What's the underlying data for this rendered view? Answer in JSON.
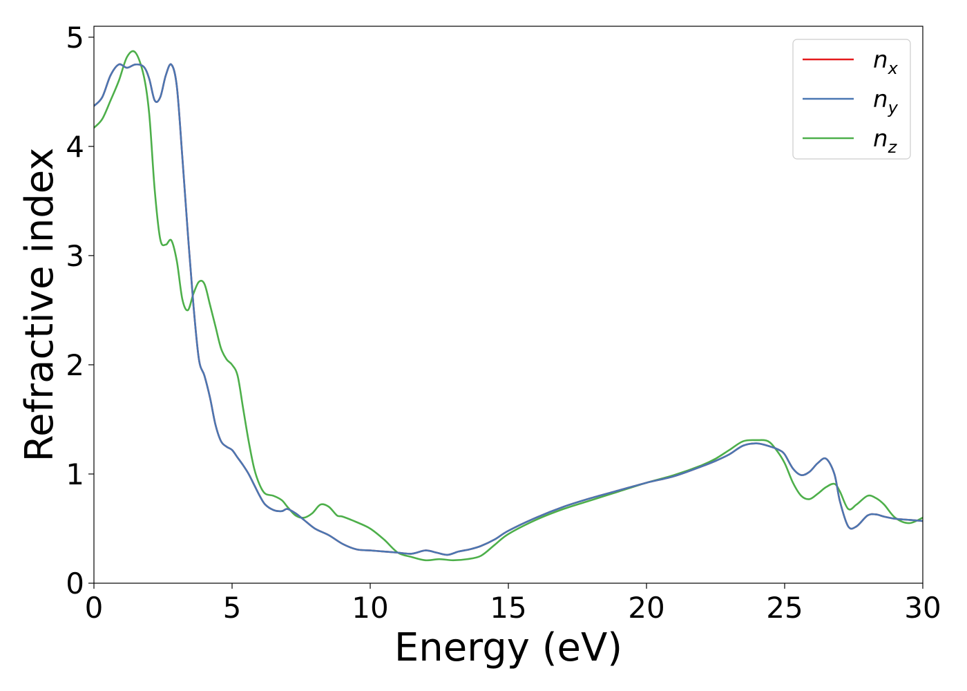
{
  "chart_data": {
    "type": "line",
    "xlabel": "Energy (eV)",
    "ylabel": "Refractive index",
    "xlim": [
      0,
      30
    ],
    "ylim": [
      0,
      5.1
    ],
    "xticks": [
      0,
      5,
      10,
      15,
      20,
      25,
      30
    ],
    "yticks": [
      0,
      1,
      2,
      3,
      4,
      5
    ],
    "grid": false,
    "legend_position": "top-right",
    "series": [
      {
        "name": "n",
        "subscript": "x",
        "color": "#e41a1c",
        "x": [
          0,
          0.3,
          0.6,
          0.9,
          1.2,
          1.5,
          1.8,
          2.0,
          2.2,
          2.4,
          2.6,
          2.8,
          3.0,
          3.2,
          3.4,
          3.6,
          3.8,
          4.0,
          4.2,
          4.4,
          4.6,
          4.8,
          5.0,
          5.2,
          5.4,
          5.6,
          5.8,
          6.0,
          6.2,
          6.5,
          6.8,
          7.0,
          7.3,
          7.6,
          8.0,
          8.5,
          9.0,
          9.5,
          10.0,
          10.5,
          11.0,
          11.5,
          12.0,
          12.4,
          12.8,
          13.2,
          13.6,
          14.0,
          14.5,
          15.0,
          16.0,
          17.0,
          18.0,
          19.0,
          20.0,
          21.0,
          22.0,
          22.5,
          23.0,
          23.5,
          24.0,
          24.5,
          24.8,
          25.0,
          25.3,
          25.6,
          25.9,
          26.2,
          26.5,
          26.8,
          27.0,
          27.3,
          27.6,
          28.0,
          28.3,
          28.6,
          29.0,
          29.5,
          30.0
        ],
        "y": [
          4.37,
          4.45,
          4.65,
          4.75,
          4.72,
          4.75,
          4.73,
          4.62,
          4.42,
          4.45,
          4.65,
          4.75,
          4.55,
          3.9,
          3.2,
          2.55,
          2.05,
          1.9,
          1.7,
          1.45,
          1.3,
          1.25,
          1.22,
          1.15,
          1.08,
          1.0,
          0.9,
          0.8,
          0.72,
          0.67,
          0.66,
          0.68,
          0.64,
          0.58,
          0.5,
          0.44,
          0.36,
          0.31,
          0.3,
          0.29,
          0.28,
          0.27,
          0.3,
          0.28,
          0.26,
          0.29,
          0.31,
          0.34,
          0.4,
          0.48,
          0.6,
          0.7,
          0.78,
          0.85,
          0.92,
          0.98,
          1.07,
          1.12,
          1.18,
          1.26,
          1.28,
          1.25,
          1.22,
          1.18,
          1.05,
          0.99,
          1.02,
          1.1,
          1.14,
          1.0,
          0.75,
          0.52,
          0.52,
          0.62,
          0.63,
          0.61,
          0.59,
          0.58,
          0.57
        ]
      },
      {
        "name": "n",
        "subscript": "y",
        "color": "#4a77b2",
        "x": [
          0,
          0.3,
          0.6,
          0.9,
          1.2,
          1.5,
          1.8,
          2.0,
          2.2,
          2.4,
          2.6,
          2.8,
          3.0,
          3.2,
          3.4,
          3.6,
          3.8,
          4.0,
          4.2,
          4.4,
          4.6,
          4.8,
          5.0,
          5.2,
          5.4,
          5.6,
          5.8,
          6.0,
          6.2,
          6.5,
          6.8,
          7.0,
          7.3,
          7.6,
          8.0,
          8.5,
          9.0,
          9.5,
          10.0,
          10.5,
          11.0,
          11.5,
          12.0,
          12.4,
          12.8,
          13.2,
          13.6,
          14.0,
          14.5,
          15.0,
          16.0,
          17.0,
          18.0,
          19.0,
          20.0,
          21.0,
          22.0,
          22.5,
          23.0,
          23.5,
          24.0,
          24.5,
          24.8,
          25.0,
          25.3,
          25.6,
          25.9,
          26.2,
          26.5,
          26.8,
          27.0,
          27.3,
          27.6,
          28.0,
          28.3,
          28.6,
          29.0,
          29.5,
          30.0
        ],
        "y": [
          4.37,
          4.45,
          4.65,
          4.75,
          4.72,
          4.75,
          4.73,
          4.62,
          4.42,
          4.45,
          4.65,
          4.75,
          4.55,
          3.9,
          3.2,
          2.55,
          2.05,
          1.9,
          1.7,
          1.45,
          1.3,
          1.25,
          1.22,
          1.15,
          1.08,
          1.0,
          0.9,
          0.8,
          0.72,
          0.67,
          0.66,
          0.68,
          0.64,
          0.58,
          0.5,
          0.44,
          0.36,
          0.31,
          0.3,
          0.29,
          0.28,
          0.27,
          0.3,
          0.28,
          0.26,
          0.29,
          0.31,
          0.34,
          0.4,
          0.48,
          0.6,
          0.7,
          0.78,
          0.85,
          0.92,
          0.98,
          1.07,
          1.12,
          1.18,
          1.26,
          1.28,
          1.25,
          1.22,
          1.18,
          1.05,
          0.99,
          1.02,
          1.1,
          1.14,
          1.0,
          0.75,
          0.52,
          0.52,
          0.62,
          0.63,
          0.61,
          0.59,
          0.58,
          0.57
        ]
      },
      {
        "name": "n",
        "subscript": "z",
        "color": "#4daf4a",
        "x": [
          0,
          0.3,
          0.6,
          0.9,
          1.2,
          1.5,
          1.8,
          2.0,
          2.2,
          2.4,
          2.6,
          2.8,
          3.0,
          3.2,
          3.4,
          3.6,
          3.8,
          4.0,
          4.2,
          4.4,
          4.6,
          4.8,
          5.0,
          5.2,
          5.4,
          5.6,
          5.8,
          6.0,
          6.2,
          6.5,
          6.8,
          7.0,
          7.3,
          7.6,
          7.9,
          8.2,
          8.5,
          8.8,
          9.0,
          9.5,
          10.0,
          10.5,
          11.0,
          11.5,
          12.0,
          12.5,
          13.0,
          13.5,
          14.0,
          14.5,
          15.0,
          16.0,
          17.0,
          18.0,
          19.0,
          20.0,
          21.0,
          22.0,
          22.5,
          23.0,
          23.5,
          24.0,
          24.4,
          24.7,
          25.0,
          25.3,
          25.6,
          25.9,
          26.2,
          26.5,
          26.8,
          27.0,
          27.3,
          27.6,
          28.0,
          28.3,
          28.6,
          29.0,
          29.5,
          30.0
        ],
        "y": [
          4.17,
          4.25,
          4.42,
          4.6,
          4.82,
          4.86,
          4.65,
          4.3,
          3.6,
          3.15,
          3.1,
          3.14,
          2.95,
          2.6,
          2.5,
          2.65,
          2.76,
          2.74,
          2.55,
          2.35,
          2.15,
          2.05,
          2.0,
          1.9,
          1.6,
          1.3,
          1.05,
          0.9,
          0.82,
          0.8,
          0.76,
          0.7,
          0.62,
          0.6,
          0.64,
          0.72,
          0.7,
          0.62,
          0.61,
          0.56,
          0.5,
          0.4,
          0.28,
          0.24,
          0.21,
          0.22,
          0.21,
          0.22,
          0.25,
          0.35,
          0.45,
          0.58,
          0.68,
          0.76,
          0.84,
          0.92,
          0.99,
          1.08,
          1.14,
          1.22,
          1.3,
          1.31,
          1.3,
          1.22,
          1.1,
          0.92,
          0.8,
          0.77,
          0.82,
          0.88,
          0.91,
          0.84,
          0.68,
          0.72,
          0.8,
          0.78,
          0.72,
          0.6,
          0.55,
          0.6
        ]
      }
    ]
  }
}
